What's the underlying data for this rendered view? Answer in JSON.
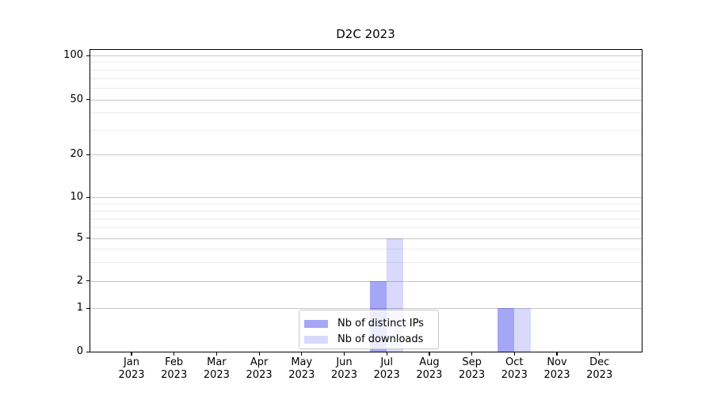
{
  "chart_data": {
    "type": "bar",
    "title": "D2C 2023",
    "xlabel": "",
    "ylabel": "",
    "categories": [
      "Jan 2023",
      "Feb 2023",
      "Mar 2023",
      "Apr 2023",
      "May 2023",
      "Jun 2023",
      "Jul 2023",
      "Aug 2023",
      "Sep 2023",
      "Oct 2023",
      "Nov 2023",
      "Dec 2023"
    ],
    "series": [
      {
        "name": "Nb of distinct IPs",
        "base_color": "#0000e6",
        "alpha": 0.35,
        "values": [
          0,
          0,
          0,
          0,
          0,
          0,
          2,
          0,
          0,
          1,
          0,
          0
        ]
      },
      {
        "name": "Nb of downloads",
        "base_color": "#0000e6",
        "alpha": 0.15,
        "values": [
          0,
          0,
          0,
          0,
          0,
          0,
          5,
          0,
          0,
          1,
          0,
          0
        ]
      }
    ],
    "yscale": "symlog-like",
    "ylim": [
      0,
      110
    ],
    "yticks_major": [
      0,
      1,
      2,
      5,
      10,
      20,
      50,
      100
    ],
    "yticks_minor": [
      3,
      4,
      6,
      7,
      8,
      9,
      30,
      40,
      60,
      70,
      80,
      90
    ],
    "grid": "horizontal major+minor",
    "grid_major_color": "#c8c8c8",
    "grid_minor_color": "#ebebeb",
    "legend_position": "lower center",
    "background_color": "#ffffff",
    "axis_color": "#000000"
  }
}
